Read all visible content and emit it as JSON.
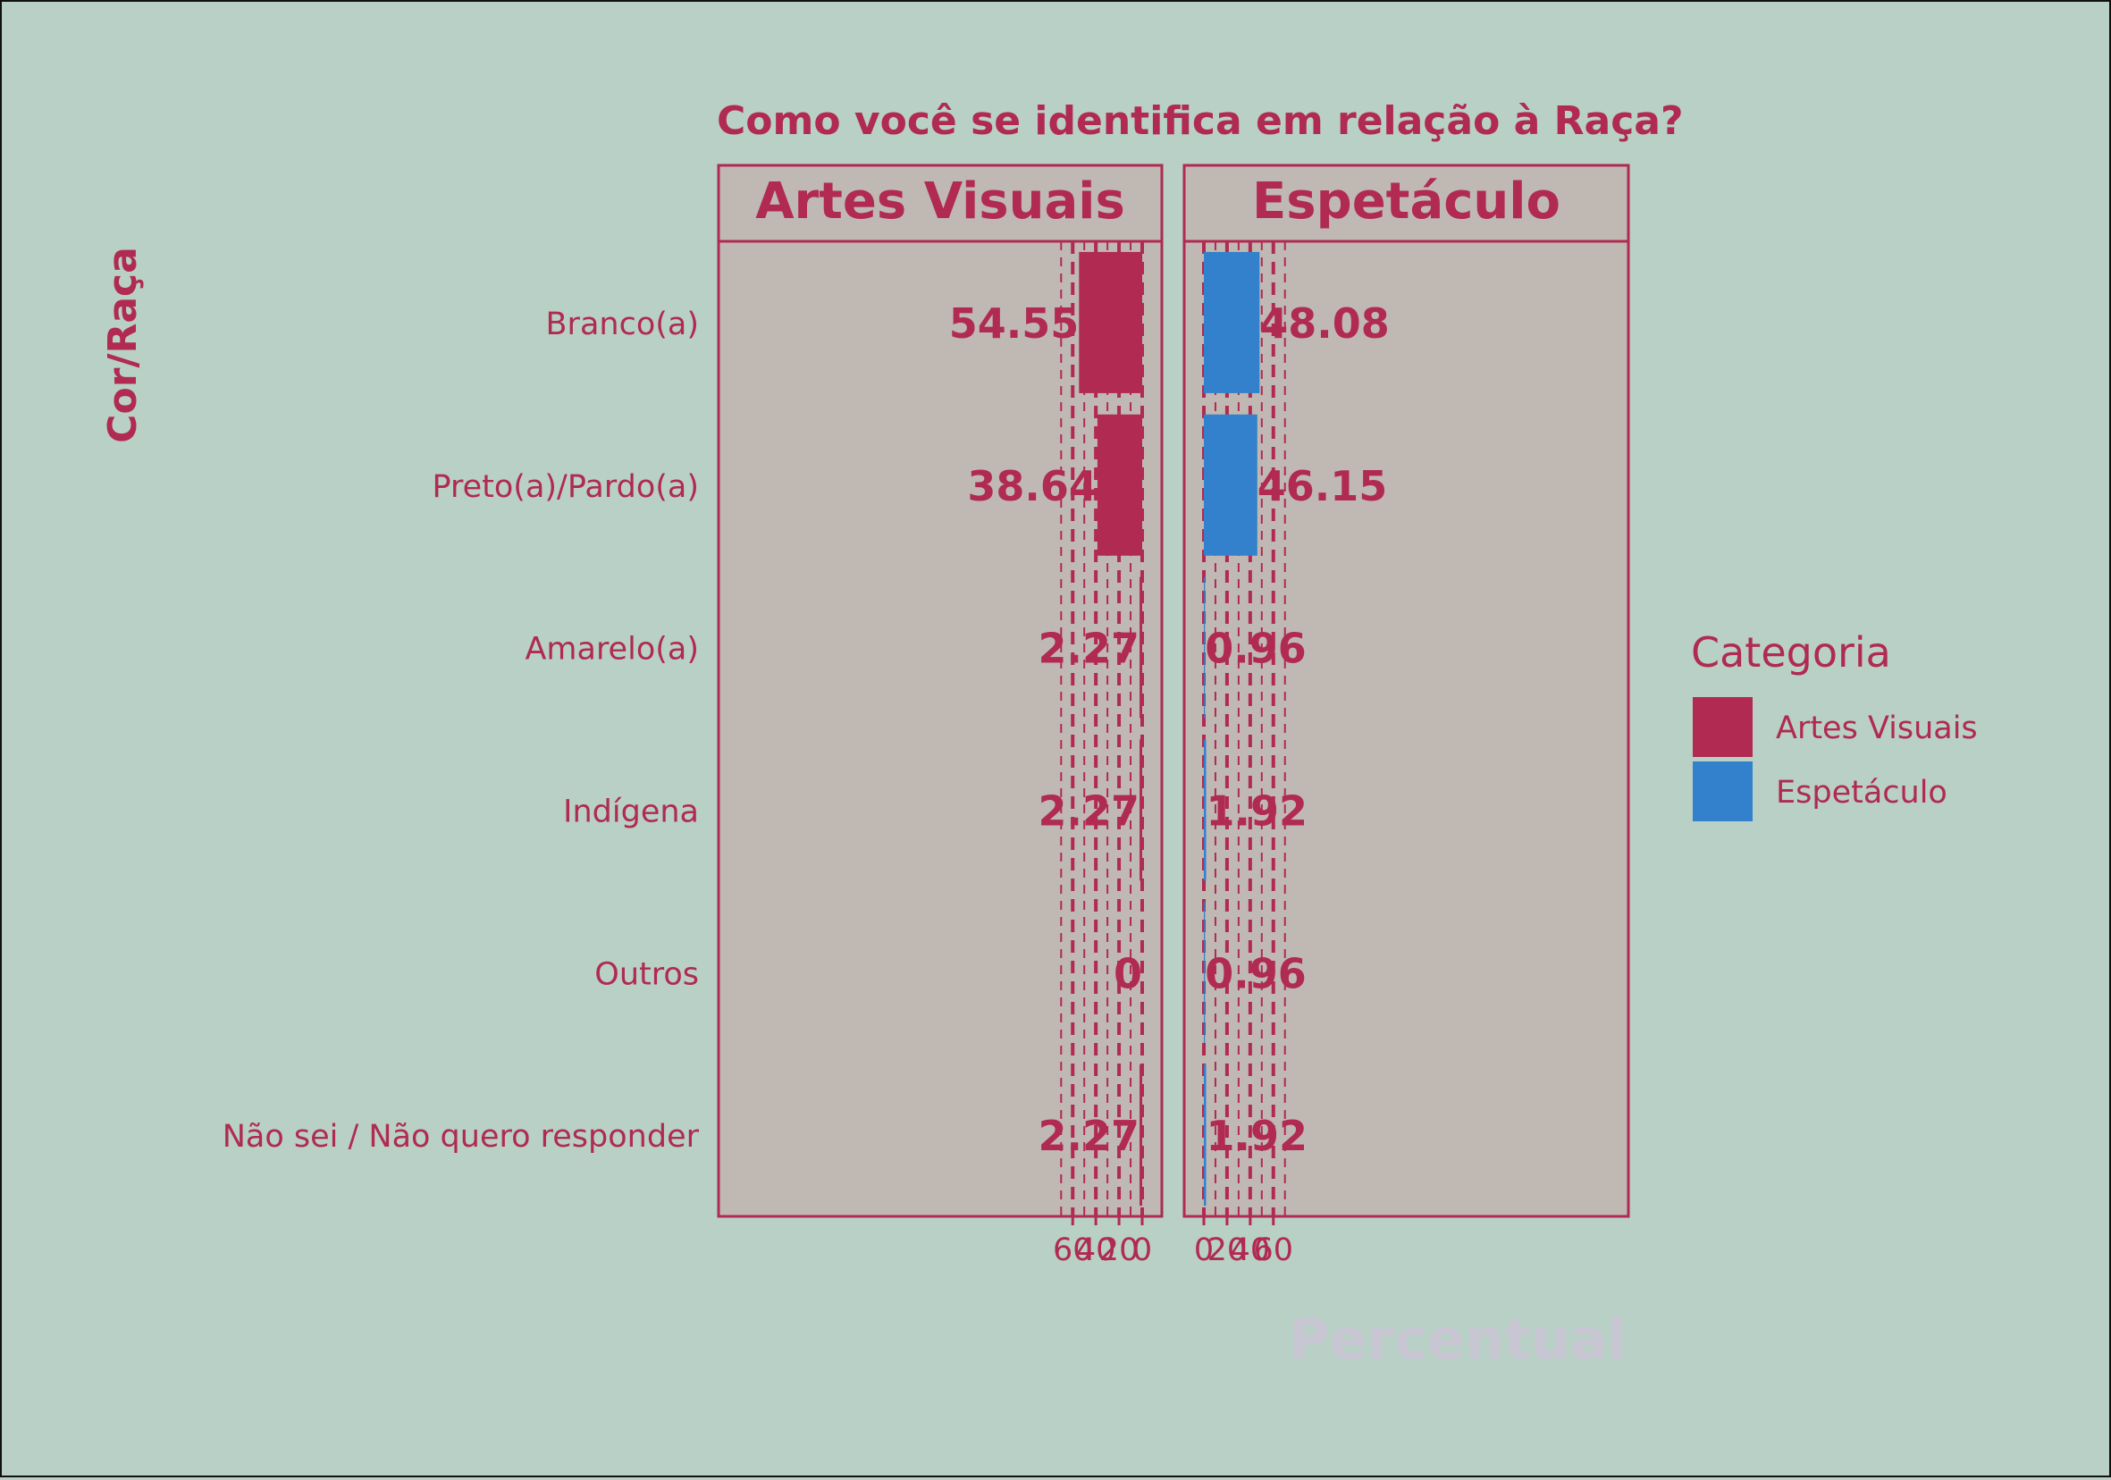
{
  "chart_data": {
    "type": "bar",
    "orientation": "horizontal",
    "title": "Como você se identifica em relação à Raça?",
    "ylabel": "Cor/Raça",
    "xlabel": "Percentual",
    "categories": [
      "Branco(a)",
      "Preto(a)/Pardo(a)",
      "Amarelo(a)",
      "Indígena",
      "Outros",
      "Não sei / Não quero responder"
    ],
    "series": [
      {
        "name": "Artes Visuais",
        "values": [
          54.55,
          38.64,
          2.27,
          2.27,
          0,
          2.27
        ],
        "labels": [
          "54.55",
          "38.64",
          "2.27",
          "2.27",
          "0",
          "2.27"
        ],
        "color": "#b02a52",
        "direction": "reversed"
      },
      {
        "name": "Espetáculo",
        "values": [
          48.08,
          46.15,
          0.96,
          1.92,
          0.96,
          1.92
        ],
        "labels": [
          "48.08",
          "46.15",
          "0.96",
          "1.92",
          "0.96",
          "1.92"
        ],
        "color": "#3380cc",
        "direction": "normal"
      }
    ],
    "xlim": [
      0,
      74
    ],
    "xticks": [
      0,
      20,
      40,
      60
    ],
    "xtick_labels": [
      "0",
      "20",
      "40",
      "60"
    ],
    "grid": "vertical dashed",
    "legend": {
      "title": "Categoria",
      "position": "right",
      "entries": [
        "Artes Visuais",
        "Espetáculo"
      ]
    },
    "colors": {
      "background": "#b8d0c6",
      "panel": "#c0b9b3",
      "text": "#b02a52",
      "xlabel": "#c9c6d3"
    }
  }
}
